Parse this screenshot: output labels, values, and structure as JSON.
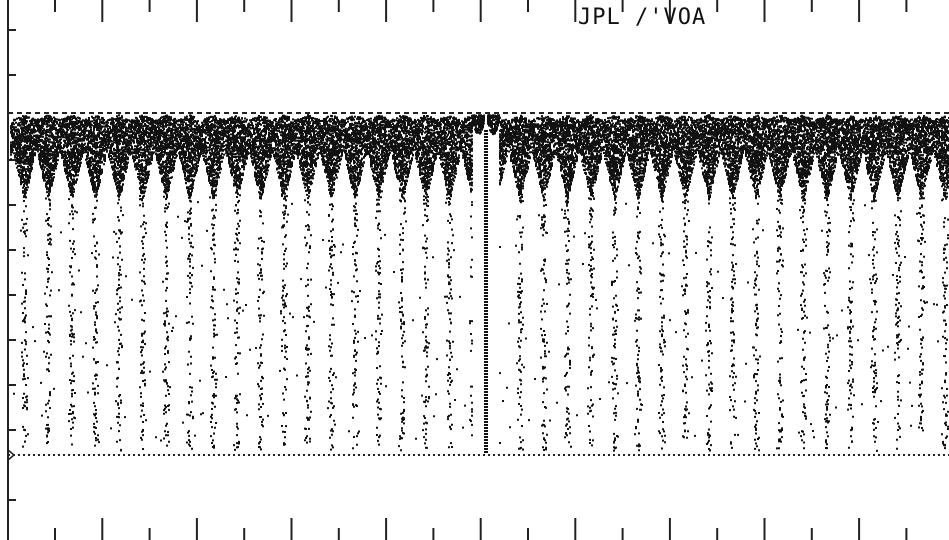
{
  "header": {
    "label": "JPL /'VOA"
  }
}
